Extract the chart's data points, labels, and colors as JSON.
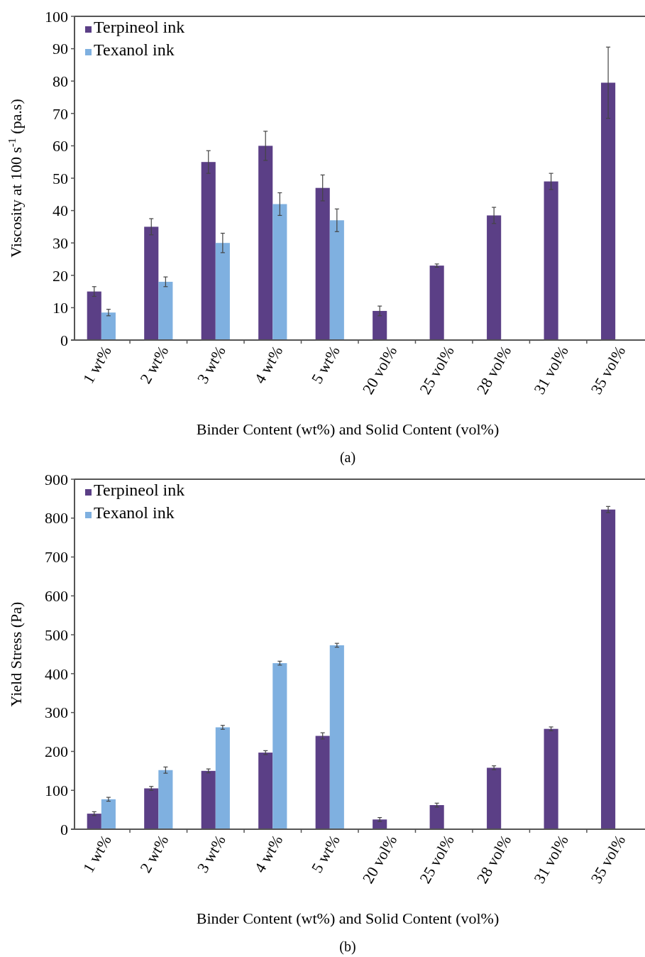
{
  "chart_data": [
    {
      "type": "bar",
      "ylabel": "Viscosity at 100 s$^{-1}$ (pa.s)",
      "xlabel": "Binder Content (wt%) and Solid Content (vol%)",
      "categories": [
        "1 wt%",
        "2 wt%",
        "3 wt%",
        "4 wt%",
        "5 wt%",
        "20 vol%",
        "25 vol%",
        "28 vol%",
        "31 vol%",
        "35 vol%"
      ],
      "series": [
        {
          "name": "Terpineol ink",
          "color": "#5b3f86",
          "values": [
            15,
            35,
            55,
            60,
            47,
            9,
            23,
            38.5,
            49,
            79.5
          ],
          "errors": [
            1.5,
            2.5,
            3.5,
            4.5,
            4,
            1.5,
            0.5,
            2.5,
            2.5,
            11
          ]
        },
        {
          "name": "Texanol ink",
          "color": "#7fb0e0",
          "values": [
            8.5,
            18,
            30,
            42,
            37,
            null,
            null,
            null,
            null,
            null
          ],
          "errors": [
            1,
            1.5,
            3,
            3.5,
            3.5,
            null,
            null,
            null,
            null,
            null
          ]
        }
      ],
      "ylim": [
        0,
        100
      ],
      "yticks": [
        0,
        10,
        20,
        30,
        40,
        50,
        60,
        70,
        80,
        90,
        100
      ],
      "grid": false,
      "legend": "top left",
      "annotations": [
        "(a)"
      ]
    },
    {
      "type": "bar",
      "ylabel": "Yield Stress (Pa)",
      "xlabel": "Binder Content (wt%) and Solid Content (vol%)",
      "categories": [
        "1 wt%",
        "2 wt%",
        "3 wt%",
        "4 wt%",
        "5 wt%",
        "20 vol%",
        "25 vol%",
        "28 vol%",
        "31 vol%",
        "35 vol%"
      ],
      "series": [
        {
          "name": "Terpineol ink",
          "color": "#5b3f86",
          "values": [
            40,
            105,
            150,
            197,
            240,
            25,
            62,
            158,
            258,
            822
          ],
          "errors": [
            5,
            5,
            5,
            5,
            8,
            5,
            5,
            5,
            5,
            8
          ]
        },
        {
          "name": "Texanol ink",
          "color": "#7fb0e0",
          "values": [
            77,
            152,
            262,
            427,
            473,
            null,
            null,
            null,
            null,
            null
          ],
          "errors": [
            5,
            8,
            5,
            5,
            5,
            null,
            null,
            null,
            null,
            null
          ]
        }
      ],
      "ylim": [
        0,
        900
      ],
      "yticks": [
        0,
        100,
        200,
        300,
        400,
        500,
        600,
        700,
        800,
        900
      ],
      "grid": false,
      "legend": "top left",
      "annotations": [
        "(b)"
      ]
    }
  ]
}
